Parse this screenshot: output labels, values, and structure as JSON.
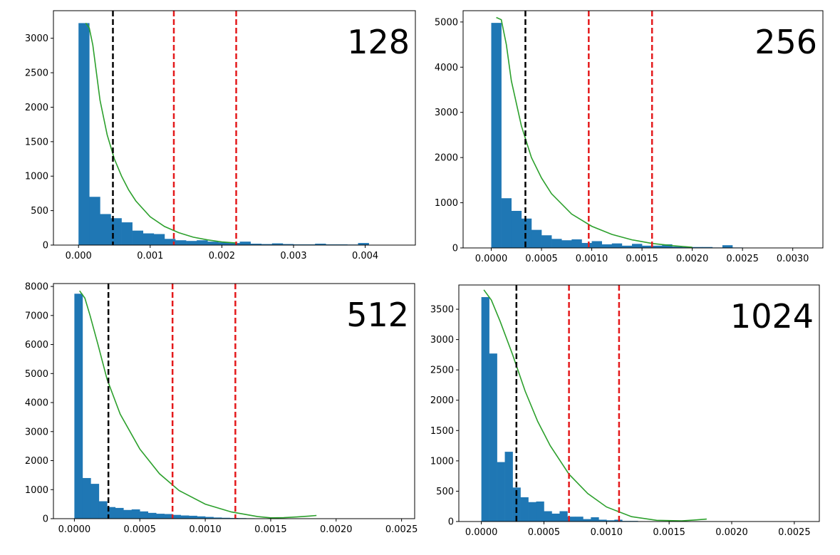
{
  "colors": {
    "bar": "#1f77b4",
    "fit": "#2ca02c",
    "mean_line": "#000000",
    "threshold_line": "#e41a1c"
  },
  "chart_data": [
    {
      "type": "bar",
      "panel_label": "128",
      "xlim": [
        -0.00035,
        0.0047
      ],
      "ylim": [
        0,
        3400
      ],
      "xticks": [
        0.0,
        0.001,
        0.002,
        0.003,
        0.004
      ],
      "xtick_labels": [
        "0.000",
        "0.001",
        "0.002",
        "0.003",
        "0.004"
      ],
      "yticks": [
        0,
        500,
        1000,
        1500,
        2000,
        2500,
        3000
      ],
      "ytick_labels": [
        "0",
        "500",
        "1000",
        "1500",
        "2000",
        "2500",
        "3000"
      ],
      "bin_start": 0.0,
      "bin_width": 0.00015,
      "values": [
        3220,
        700,
        450,
        390,
        330,
        210,
        170,
        160,
        90,
        70,
        60,
        70,
        50,
        40,
        30,
        50,
        20,
        15,
        25,
        15,
        10,
        10,
        20,
        10,
        10,
        8,
        30,
        5,
        5,
        5
      ],
      "mean_line": 0.00048,
      "threshold_lines": [
        0.00133,
        0.0022
      ],
      "fit_curve": [
        [
          0.0001,
          3220
        ],
        [
          0.00015,
          3150
        ],
        [
          0.0002,
          2900
        ],
        [
          0.0003,
          2100
        ],
        [
          0.0004,
          1600
        ],
        [
          0.0005,
          1250
        ],
        [
          0.0006,
          1000
        ],
        [
          0.0007,
          800
        ],
        [
          0.0008,
          640
        ],
        [
          0.001,
          410
        ],
        [
          0.0012,
          270
        ],
        [
          0.0014,
          180
        ],
        [
          0.0016,
          115
        ],
        [
          0.0018,
          75
        ],
        [
          0.002,
          45
        ],
        [
          0.0022,
          30
        ]
      ]
    },
    {
      "type": "bar",
      "panel_label": "256",
      "xlim": [
        -0.00028,
        0.0033
      ],
      "ylim": [
        0,
        5250
      ],
      "xticks": [
        0.0,
        0.0005,
        0.001,
        0.0015,
        0.002,
        0.0025,
        0.003
      ],
      "xtick_labels": [
        "0.0000",
        "0.0005",
        "0.0010",
        "0.0015",
        "0.0020",
        "0.0025",
        "0.0030"
      ],
      "yticks": [
        0,
        1000,
        2000,
        3000,
        4000,
        5000
      ],
      "ytick_labels": [
        "0",
        "1000",
        "2000",
        "3000",
        "4000",
        "5000"
      ],
      "bin_start": 0.0,
      "bin_width": 0.0001,
      "values": [
        4980,
        1100,
        820,
        650,
        400,
        280,
        200,
        170,
        190,
        110,
        150,
        80,
        100,
        50,
        90,
        50,
        50,
        80,
        30,
        20,
        20,
        20,
        10,
        60,
        10,
        5,
        5,
        5,
        5,
        5,
        5
      ],
      "mean_line": 0.00034,
      "threshold_lines": [
        0.00097,
        0.0016
      ],
      "fit_curve": [
        [
          5e-05,
          5100
        ],
        [
          0.0001,
          5050
        ],
        [
          0.00015,
          4500
        ],
        [
          0.0002,
          3700
        ],
        [
          0.0003,
          2700
        ],
        [
          0.0004,
          2000
        ],
        [
          0.0005,
          1550
        ],
        [
          0.0006,
          1200
        ],
        [
          0.0008,
          750
        ],
        [
          0.001,
          480
        ],
        [
          0.0012,
          300
        ],
        [
          0.0014,
          180
        ],
        [
          0.0016,
          100
        ],
        [
          0.0018,
          50
        ],
        [
          0.002,
          15
        ]
      ]
    },
    {
      "type": "bar",
      "panel_label": "512",
      "xlim": [
        -0.00016,
        0.0026
      ],
      "ylim": [
        0,
        8100
      ],
      "xticks": [
        0.0,
        0.0005,
        0.001,
        0.0015,
        0.002,
        0.0025
      ],
      "xtick_labels": [
        "0.0000",
        "0.0005",
        "0.0010",
        "0.0015",
        "0.0020",
        "0.0025"
      ],
      "yticks": [
        0,
        1000,
        2000,
        3000,
        4000,
        5000,
        6000,
        7000,
        8000
      ],
      "ytick_labels": [
        "0",
        "1000",
        "2000",
        "3000",
        "4000",
        "5000",
        "6000",
        "7000",
        "8000"
      ],
      "bin_start": 0.0,
      "bin_width": 6.25e-05,
      "values": [
        7750,
        1400,
        1200,
        600,
        400,
        370,
        300,
        320,
        250,
        200,
        170,
        160,
        130,
        110,
        100,
        80,
        60,
        40,
        30,
        25,
        20,
        15,
        10,
        8,
        6,
        5,
        5,
        5,
        5,
        5,
        10
      ],
      "mean_line": 0.00026,
      "threshold_lines": [
        0.00075,
        0.00123
      ],
      "fit_curve": [
        [
          4e-05,
          7850
        ],
        [
          8e-05,
          7600
        ],
        [
          0.00012,
          7000
        ],
        [
          0.00018,
          6000
        ],
        [
          0.00025,
          4800
        ],
        [
          0.00035,
          3600
        ],
        [
          0.0005,
          2400
        ],
        [
          0.00065,
          1550
        ],
        [
          0.0008,
          970
        ],
        [
          0.001,
          500
        ],
        [
          0.0012,
          230
        ],
        [
          0.0014,
          70
        ],
        [
          0.0015,
          30
        ],
        [
          0.0016,
          35
        ],
        [
          0.0017,
          60
        ],
        [
          0.0018,
          90
        ],
        [
          0.00185,
          110
        ]
      ]
    },
    {
      "type": "bar",
      "panel_label": "1024",
      "xlim": [
        -0.00018,
        0.0027
      ],
      "ylim": [
        0,
        3900
      ],
      "xticks": [
        0.0,
        0.0005,
        0.001,
        0.0015,
        0.002,
        0.0025
      ],
      "xtick_labels": [
        "0.0000",
        "0.0005",
        "0.0010",
        "0.0015",
        "0.0020",
        "0.0025"
      ],
      "yticks": [
        0,
        500,
        1000,
        1500,
        2000,
        2500,
        3000,
        3500
      ],
      "ytick_labels": [
        "0",
        "500",
        "1000",
        "1500",
        "2000",
        "2500",
        "3000",
        "3500"
      ],
      "bin_start": 0.0,
      "bin_width": 6.25e-05,
      "values": [
        3700,
        2770,
        980,
        1150,
        560,
        400,
        320,
        330,
        170,
        130,
        170,
        80,
        80,
        40,
        70,
        30,
        20,
        30,
        10,
        10,
        5,
        5
      ],
      "mean_line": 0.00028,
      "threshold_lines": [
        0.0007,
        0.0011
      ],
      "fit_curve": [
        [
          2e-05,
          3820
        ],
        [
          8e-05,
          3650
        ],
        [
          0.00015,
          3300
        ],
        [
          0.00025,
          2750
        ],
        [
          0.00035,
          2150
        ],
        [
          0.00045,
          1650
        ],
        [
          0.00055,
          1250
        ],
        [
          0.0007,
          780
        ],
        [
          0.00085,
          460
        ],
        [
          0.001,
          240
        ],
        [
          0.0012,
          80
        ],
        [
          0.0014,
          20
        ],
        [
          0.0016,
          10
        ],
        [
          0.0017,
          25
        ],
        [
          0.0018,
          40
        ]
      ]
    }
  ]
}
